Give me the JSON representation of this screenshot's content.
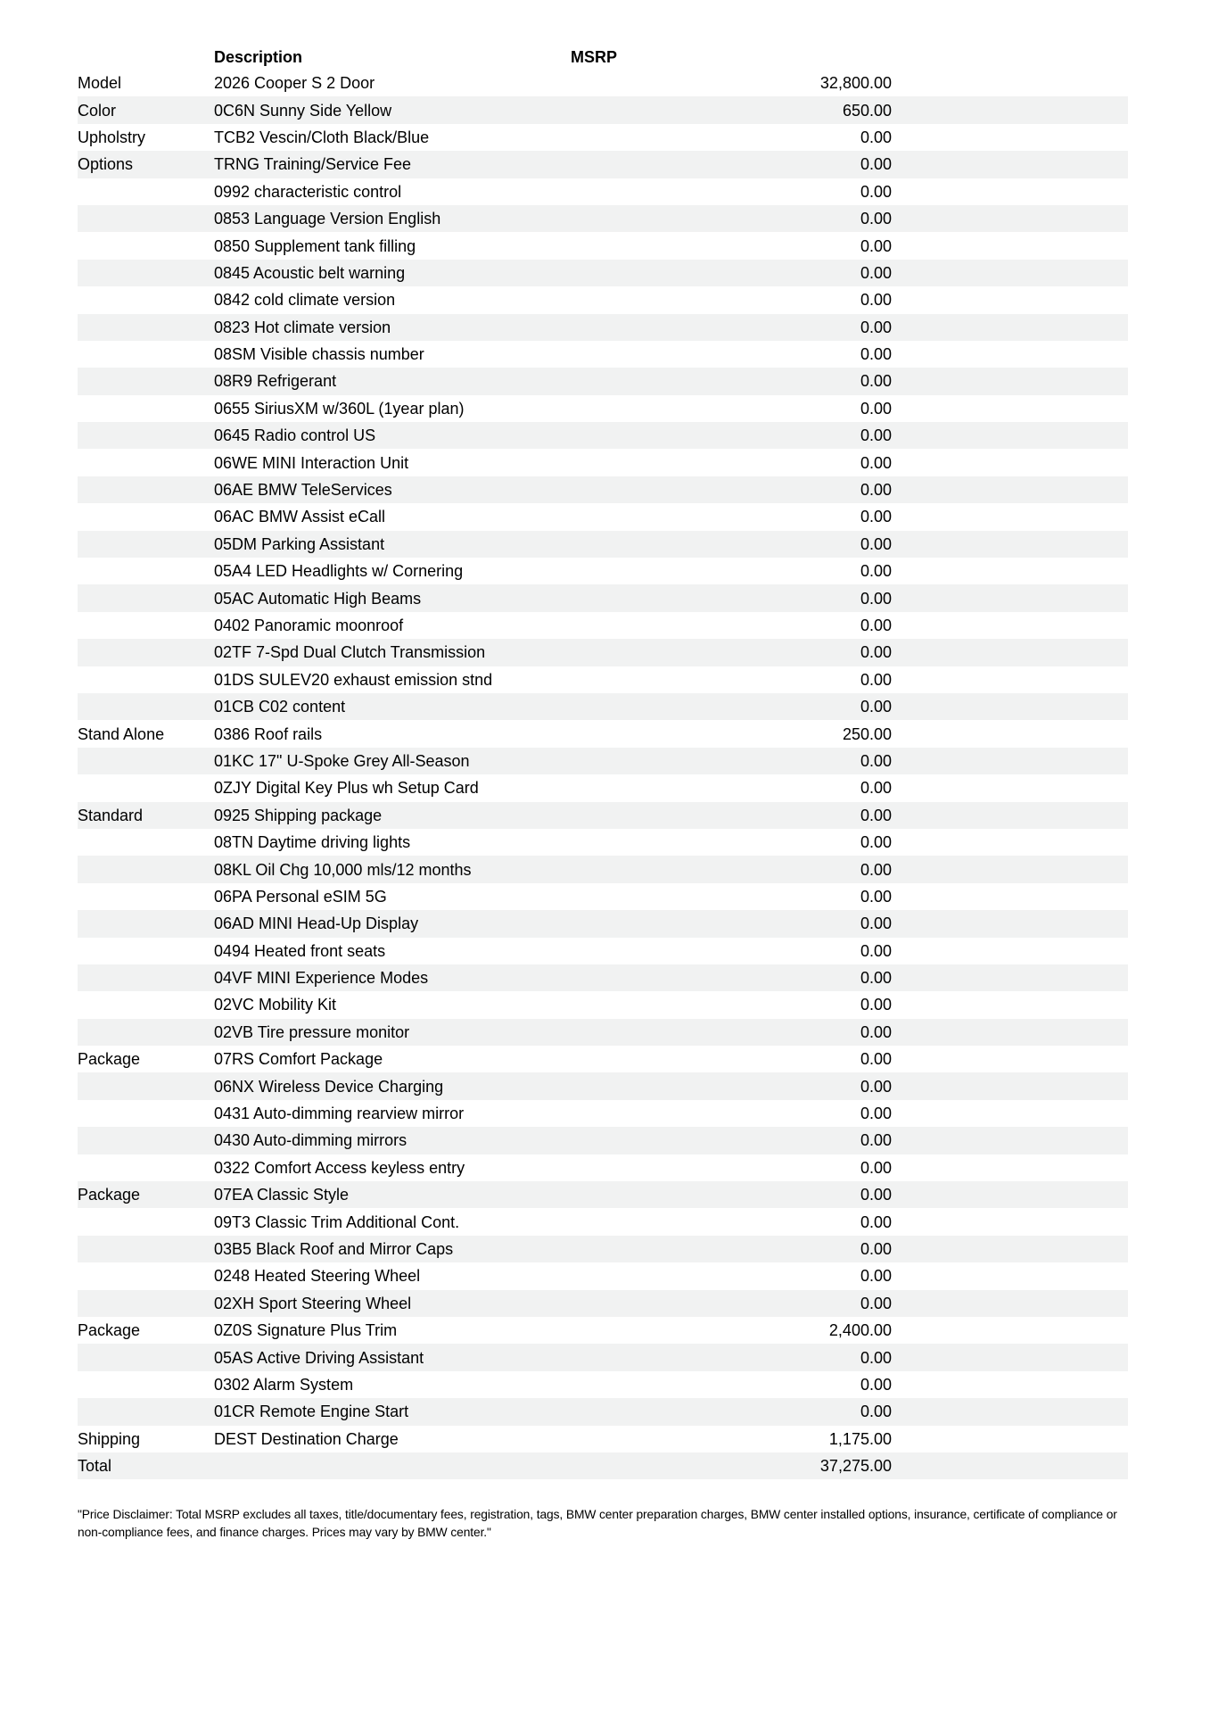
{
  "colors": {
    "row_stripe": "#f1f2f2",
    "page_background": "#ffffff",
    "text": "#000000"
  },
  "header": {
    "description_label": "Description",
    "msrp_label": "MSRP"
  },
  "rows": [
    {
      "category": "Model",
      "description": "2026 Cooper S 2 Door",
      "msrp": "32,800.00"
    },
    {
      "category": "Color",
      "description": "0C6N Sunny Side Yellow",
      "msrp": "650.00"
    },
    {
      "category": "Upholstry",
      "description": "TCB2 Vescin/Cloth Black/Blue",
      "msrp": "0.00"
    },
    {
      "category": "Options",
      "description": "TRNG Training/Service Fee",
      "msrp": "0.00"
    },
    {
      "category": "",
      "description": "0992 characteristic control",
      "msrp": "0.00"
    },
    {
      "category": "",
      "description": "0853 Language Version English",
      "msrp": "0.00"
    },
    {
      "category": "",
      "description": "0850 Supplement tank filling",
      "msrp": "0.00"
    },
    {
      "category": "",
      "description": "0845 Acoustic belt warning",
      "msrp": "0.00"
    },
    {
      "category": "",
      "description": "0842 cold climate version",
      "msrp": "0.00"
    },
    {
      "category": "",
      "description": "0823 Hot climate version",
      "msrp": "0.00"
    },
    {
      "category": "",
      "description": "08SM Visible chassis number",
      "msrp": "0.00"
    },
    {
      "category": "",
      "description": "08R9 Refrigerant",
      "msrp": "0.00"
    },
    {
      "category": "",
      "description": "0655 SiriusXM w/360L (1year plan)",
      "msrp": "0.00"
    },
    {
      "category": "",
      "description": "0645 Radio control US",
      "msrp": "0.00"
    },
    {
      "category": "",
      "description": "06WE MINI Interaction Unit",
      "msrp": "0.00"
    },
    {
      "category": "",
      "description": "06AE BMW TeleServices",
      "msrp": "0.00"
    },
    {
      "category": "",
      "description": "06AC BMW Assist eCall",
      "msrp": "0.00"
    },
    {
      "category": "",
      "description": "05DM Parking Assistant",
      "msrp": "0.00"
    },
    {
      "category": "",
      "description": "05A4 LED Headlights w/ Cornering",
      "msrp": "0.00"
    },
    {
      "category": "",
      "description": "05AC Automatic High Beams",
      "msrp": "0.00"
    },
    {
      "category": "",
      "description": "0402 Panoramic moonroof",
      "msrp": "0.00"
    },
    {
      "category": "",
      "description": "02TF 7-Spd Dual Clutch Transmission",
      "msrp": "0.00"
    },
    {
      "category": "",
      "description": "01DS SULEV20 exhaust emission stnd",
      "msrp": "0.00"
    },
    {
      "category": "",
      "description": "01CB C02 content",
      "msrp": "0.00"
    },
    {
      "category": "Stand Alone",
      "description": "0386 Roof rails",
      "msrp": "250.00"
    },
    {
      "category": "",
      "description": "01KC 17\" U-Spoke Grey All-Season",
      "msrp": "0.00"
    },
    {
      "category": "",
      "description": "0ZJY Digital Key Plus wh Setup Card",
      "msrp": "0.00"
    },
    {
      "category": "Standard",
      "description": "0925 Shipping package",
      "msrp": "0.00"
    },
    {
      "category": "",
      "description": "08TN Daytime driving lights",
      "msrp": "0.00"
    },
    {
      "category": "",
      "description": "08KL Oil Chg 10,000 mls/12 months",
      "msrp": "0.00"
    },
    {
      "category": "",
      "description": "06PA Personal eSIM 5G",
      "msrp": "0.00"
    },
    {
      "category": "",
      "description": "06AD MINI Head-Up Display",
      "msrp": "0.00"
    },
    {
      "category": "",
      "description": "0494 Heated front seats",
      "msrp": "0.00"
    },
    {
      "category": "",
      "description": "04VF MINI Experience Modes",
      "msrp": "0.00"
    },
    {
      "category": "",
      "description": "02VC Mobility Kit",
      "msrp": "0.00"
    },
    {
      "category": "",
      "description": "02VB Tire pressure monitor",
      "msrp": "0.00"
    },
    {
      "category": "Package",
      "description": "07RS Comfort Package",
      "msrp": "0.00"
    },
    {
      "category": "",
      "description": "06NX Wireless Device Charging",
      "msrp": "0.00"
    },
    {
      "category": "",
      "description": "0431 Auto-dimming rearview mirror",
      "msrp": "0.00"
    },
    {
      "category": "",
      "description": "0430 Auto-dimming mirrors",
      "msrp": "0.00"
    },
    {
      "category": "",
      "description": "0322 Comfort Access keyless entry",
      "msrp": "0.00"
    },
    {
      "category": "Package",
      "description": "07EA Classic Style",
      "msrp": "0.00"
    },
    {
      "category": "",
      "description": "09T3 Classic Trim Additional Cont.",
      "msrp": "0.00"
    },
    {
      "category": "",
      "description": "03B5 Black Roof and Mirror Caps",
      "msrp": "0.00"
    },
    {
      "category": "",
      "description": "0248 Heated Steering Wheel",
      "msrp": "0.00"
    },
    {
      "category": "",
      "description": "02XH Sport Steering Wheel",
      "msrp": "0.00"
    },
    {
      "category": "Package",
      "description": "0Z0S Signature Plus Trim",
      "msrp": "2,400.00"
    },
    {
      "category": "",
      "description": "05AS Active Driving Assistant",
      "msrp": "0.00"
    },
    {
      "category": "",
      "description": "0302 Alarm System",
      "msrp": "0.00"
    },
    {
      "category": "",
      "description": "01CR Remote Engine Start",
      "msrp": "0.00"
    },
    {
      "category": "Shipping",
      "description": "DEST Destination Charge",
      "msrp": "1,175.00"
    },
    {
      "category": "Total",
      "description": "",
      "msrp": "37,275.00"
    }
  ],
  "disclaimer": "\"Price Disclaimer: Total MSRP excludes all taxes, title/documentary fees, registration, tags, BMW center preparation charges, BMW center installed options, insurance, certificate of compliance or non-compliance fees, and finance charges. Prices may vary by BMW center.\""
}
